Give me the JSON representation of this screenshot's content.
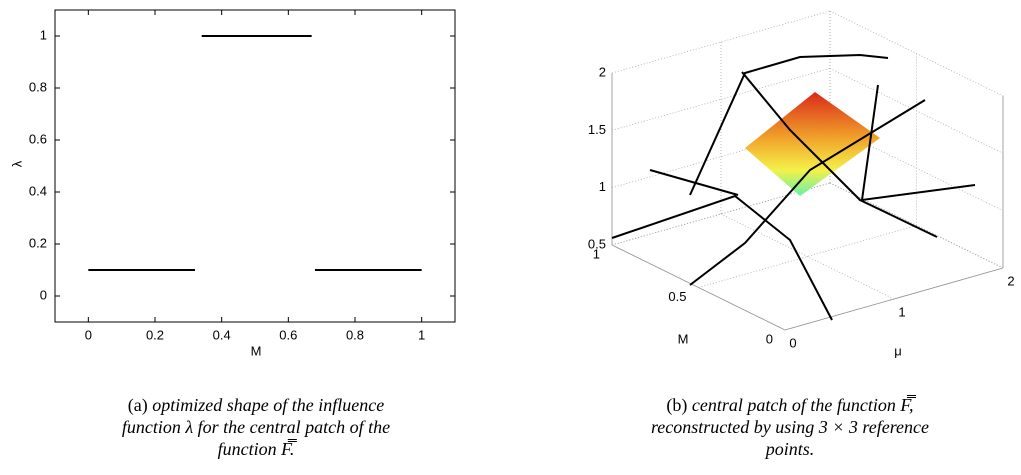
{
  "chart_data": [
    {
      "type": "line",
      "xlabel": "M",
      "ylabel": "λ",
      "x": [
        0,
        0.32,
        0.33,
        0.34,
        0.67,
        0.675,
        0.68,
        1
      ],
      "values": [
        0.1,
        0.1,
        null,
        1,
        1,
        null,
        0.1,
        0.1
      ],
      "color": "#000000",
      "xlim": [
        -0.1,
        1.1
      ],
      "ylim": [
        -0.1,
        1.1
      ],
      "xticks": [
        0,
        0.2,
        0.4,
        0.6,
        0.8,
        1
      ],
      "yticks": [
        0,
        0.2,
        0.4,
        0.6,
        0.8,
        1
      ]
    },
    {
      "type": "surface3d",
      "xlabel": "μ",
      "ylabel": "M",
      "xlim": [
        0,
        2
      ],
      "ylim": [
        0,
        1
      ],
      "zlim": [
        0.5,
        2
      ],
      "xticks": [
        0,
        1,
        2
      ],
      "yticks": [
        0,
        0.5,
        1
      ],
      "zticks": [
        0.5,
        1,
        1.5,
        2
      ],
      "grid": true
    }
  ],
  "captions": [
    {
      "label": "(a)",
      "lines": [
        "optimized shape of the influence",
        "function λ for the central patch of the",
        "function F̿."
      ]
    },
    {
      "label": "(b)",
      "lines": [
        "central patch of the function F̿,",
        "reconstructed by using 3 × 3 reference",
        "points."
      ]
    }
  ]
}
